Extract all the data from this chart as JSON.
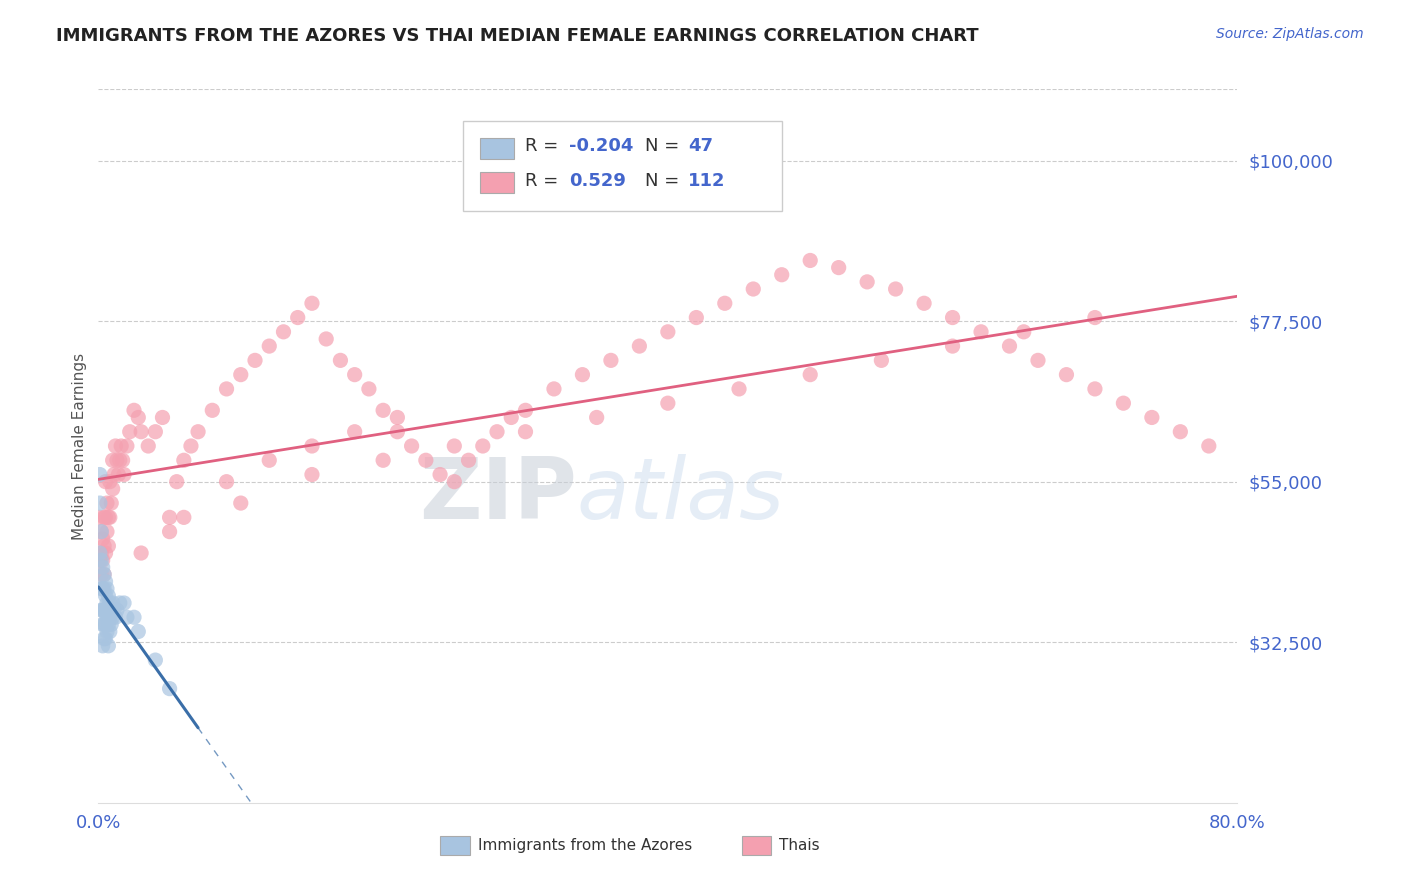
{
  "title": "IMMIGRANTS FROM THE AZORES VS THAI MEDIAN FEMALE EARNINGS CORRELATION CHART",
  "source_text": "Source: ZipAtlas.com",
  "ylabel": "Median Female Earnings",
  "x_min": 0.0,
  "x_max": 0.8,
  "y_min": 10000,
  "y_max": 110000,
  "yticks": [
    32500,
    55000,
    77500,
    100000
  ],
  "ytick_labels": [
    "$32,500",
    "$55,000",
    "$77,500",
    "$100,000"
  ],
  "xticks": [
    0.0,
    0.1,
    0.2,
    0.3,
    0.4,
    0.5,
    0.6,
    0.7,
    0.8
  ],
  "xtick_labels": [
    "0.0%",
    "",
    "",
    "",
    "",
    "",
    "",
    "",
    "80.0%"
  ],
  "color_azores": "#a8c4e0",
  "color_thais": "#f4a0b0",
  "color_trend_azores": "#3a6ea8",
  "color_trend_thais": "#e06080",
  "color_axis_labels": "#4466cc",
  "watermark_color": "#d0dff0",
  "background_color": "#ffffff",
  "azores_x": [
    0.001,
    0.001,
    0.001,
    0.002,
    0.002,
    0.002,
    0.002,
    0.003,
    0.003,
    0.003,
    0.003,
    0.003,
    0.004,
    0.004,
    0.004,
    0.004,
    0.004,
    0.005,
    0.005,
    0.005,
    0.005,
    0.005,
    0.006,
    0.006,
    0.006,
    0.006,
    0.007,
    0.007,
    0.007,
    0.007,
    0.008,
    0.008,
    0.008,
    0.009,
    0.009,
    0.01,
    0.01,
    0.011,
    0.012,
    0.013,
    0.015,
    0.018,
    0.02,
    0.025,
    0.028,
    0.04,
    0.05
  ],
  "azores_y": [
    56000,
    52000,
    45000,
    48000,
    44000,
    40000,
    37000,
    43000,
    40000,
    37000,
    35000,
    32000,
    42000,
    40000,
    37000,
    35000,
    33000,
    41000,
    39000,
    37000,
    35000,
    33000,
    40000,
    38000,
    36000,
    34000,
    39000,
    37000,
    35000,
    32000,
    38000,
    36000,
    34000,
    37000,
    35000,
    38000,
    36000,
    37000,
    36000,
    37000,
    38000,
    38000,
    36000,
    36000,
    34000,
    30000,
    26000
  ],
  "thais_x": [
    0.001,
    0.001,
    0.002,
    0.002,
    0.002,
    0.003,
    0.003,
    0.003,
    0.004,
    0.004,
    0.004,
    0.005,
    0.005,
    0.005,
    0.006,
    0.006,
    0.007,
    0.007,
    0.008,
    0.008,
    0.009,
    0.01,
    0.01,
    0.011,
    0.012,
    0.013,
    0.014,
    0.015,
    0.016,
    0.017,
    0.018,
    0.02,
    0.022,
    0.025,
    0.028,
    0.03,
    0.035,
    0.04,
    0.045,
    0.05,
    0.055,
    0.06,
    0.065,
    0.07,
    0.08,
    0.09,
    0.1,
    0.11,
    0.12,
    0.13,
    0.14,
    0.15,
    0.16,
    0.17,
    0.18,
    0.19,
    0.2,
    0.21,
    0.22,
    0.23,
    0.24,
    0.25,
    0.26,
    0.27,
    0.28,
    0.29,
    0.3,
    0.32,
    0.34,
    0.36,
    0.38,
    0.4,
    0.42,
    0.44,
    0.46,
    0.48,
    0.5,
    0.52,
    0.54,
    0.56,
    0.58,
    0.6,
    0.62,
    0.64,
    0.66,
    0.68,
    0.7,
    0.72,
    0.74,
    0.76,
    0.78,
    0.05,
    0.1,
    0.15,
    0.2,
    0.25,
    0.3,
    0.35,
    0.4,
    0.45,
    0.5,
    0.55,
    0.6,
    0.65,
    0.7,
    0.03,
    0.06,
    0.09,
    0.12,
    0.15,
    0.18,
    0.21
  ],
  "thais_y": [
    50000,
    44000,
    48000,
    45000,
    42000,
    47000,
    44000,
    40000,
    50000,
    46000,
    42000,
    55000,
    50000,
    45000,
    52000,
    48000,
    50000,
    46000,
    55000,
    50000,
    52000,
    58000,
    54000,
    56000,
    60000,
    58000,
    56000,
    58000,
    60000,
    58000,
    56000,
    60000,
    62000,
    65000,
    64000,
    62000,
    60000,
    62000,
    64000,
    50000,
    55000,
    58000,
    60000,
    62000,
    65000,
    68000,
    70000,
    72000,
    74000,
    76000,
    78000,
    80000,
    75000,
    72000,
    70000,
    68000,
    65000,
    62000,
    60000,
    58000,
    56000,
    55000,
    58000,
    60000,
    62000,
    64000,
    65000,
    68000,
    70000,
    72000,
    74000,
    76000,
    78000,
    80000,
    82000,
    84000,
    86000,
    85000,
    83000,
    82000,
    80000,
    78000,
    76000,
    74000,
    72000,
    70000,
    68000,
    66000,
    64000,
    62000,
    60000,
    48000,
    52000,
    56000,
    58000,
    60000,
    62000,
    64000,
    66000,
    68000,
    70000,
    72000,
    74000,
    76000,
    78000,
    45000,
    50000,
    55000,
    58000,
    60000,
    62000,
    64000
  ]
}
